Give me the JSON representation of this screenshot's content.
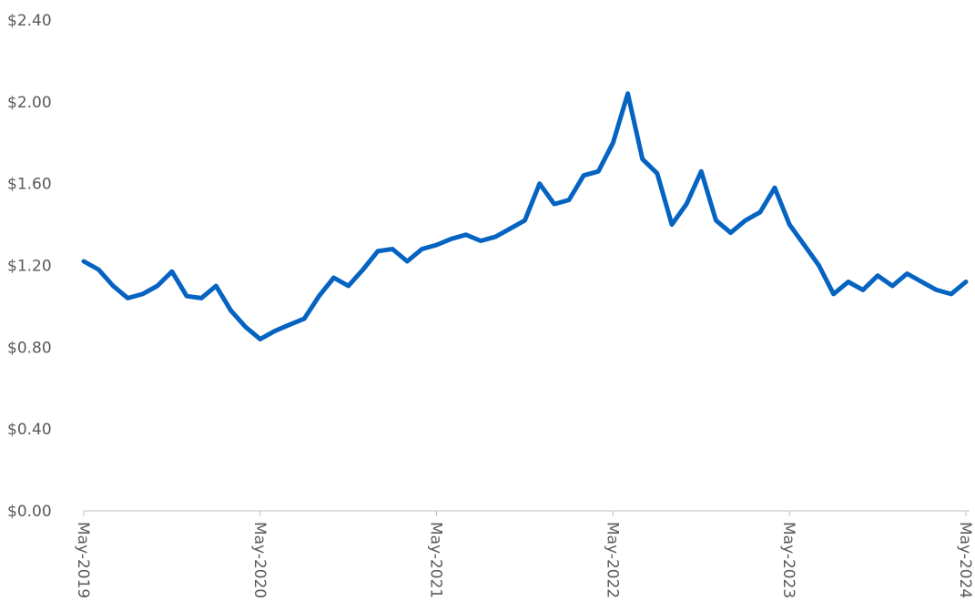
{
  "chart_data": {
    "type": "line",
    "title": "",
    "xlabel": "",
    "ylabel": "",
    "ylim": [
      0,
      2.4
    ],
    "y_ticks": [
      0,
      0.4,
      0.8,
      1.2,
      1.6,
      2.0,
      2.4
    ],
    "y_tick_labels": [
      "$0.00",
      "$0.40",
      "$0.80",
      "$1.20",
      "$1.60",
      "$2.00",
      "$2.40"
    ],
    "x_range": [
      "2019-05",
      "2024-05"
    ],
    "x_tick_labels": [
      "May-2019",
      "May-2020",
      "May-2021",
      "May-2022",
      "May-2023",
      "May-2024"
    ],
    "grid": false,
    "line_color": "#0563C1",
    "axis_color": "#BFBFBF",
    "series": [
      {
        "x": [
          "2019-05",
          "2019-06",
          "2019-07",
          "2019-08",
          "2019-09",
          "2019-10",
          "2019-11",
          "2019-12",
          "2020-01",
          "2020-02",
          "2020-03",
          "2020-04",
          "2020-05",
          "2020-06",
          "2020-07",
          "2020-08",
          "2020-09",
          "2020-10",
          "2020-11",
          "2020-12",
          "2021-01",
          "2021-02",
          "2021-03",
          "2021-04",
          "2021-05",
          "2021-06",
          "2021-07",
          "2021-08",
          "2021-09",
          "2021-10",
          "2021-11",
          "2021-12",
          "2022-01",
          "2022-02",
          "2022-03",
          "2022-04",
          "2022-05",
          "2022-06",
          "2022-07",
          "2022-08",
          "2022-09",
          "2022-10",
          "2022-11",
          "2022-12",
          "2023-01",
          "2023-02",
          "2023-03",
          "2023-04",
          "2023-05",
          "2023-06",
          "2023-07",
          "2023-08",
          "2023-09",
          "2023-10",
          "2023-11",
          "2023-12",
          "2024-01",
          "2024-02",
          "2024-03",
          "2024-04",
          "2024-05"
        ],
        "values": [
          1.22,
          1.18,
          1.1,
          1.04,
          1.06,
          1.1,
          1.17,
          1.05,
          1.04,
          1.1,
          0.98,
          0.9,
          0.84,
          0.88,
          0.91,
          0.94,
          1.05,
          1.14,
          1.1,
          1.18,
          1.27,
          1.28,
          1.22,
          1.28,
          1.3,
          1.33,
          1.35,
          1.32,
          1.34,
          1.38,
          1.42,
          1.6,
          1.5,
          1.52,
          1.64,
          1.66,
          1.8,
          2.04,
          1.72,
          1.65,
          1.4,
          1.5,
          1.66,
          1.42,
          1.36,
          1.42,
          1.46,
          1.58,
          1.4,
          1.3,
          1.2,
          1.06,
          1.12,
          1.08,
          1.15,
          1.1,
          1.16,
          1.12,
          1.08,
          1.06,
          1.12
        ]
      }
    ]
  }
}
